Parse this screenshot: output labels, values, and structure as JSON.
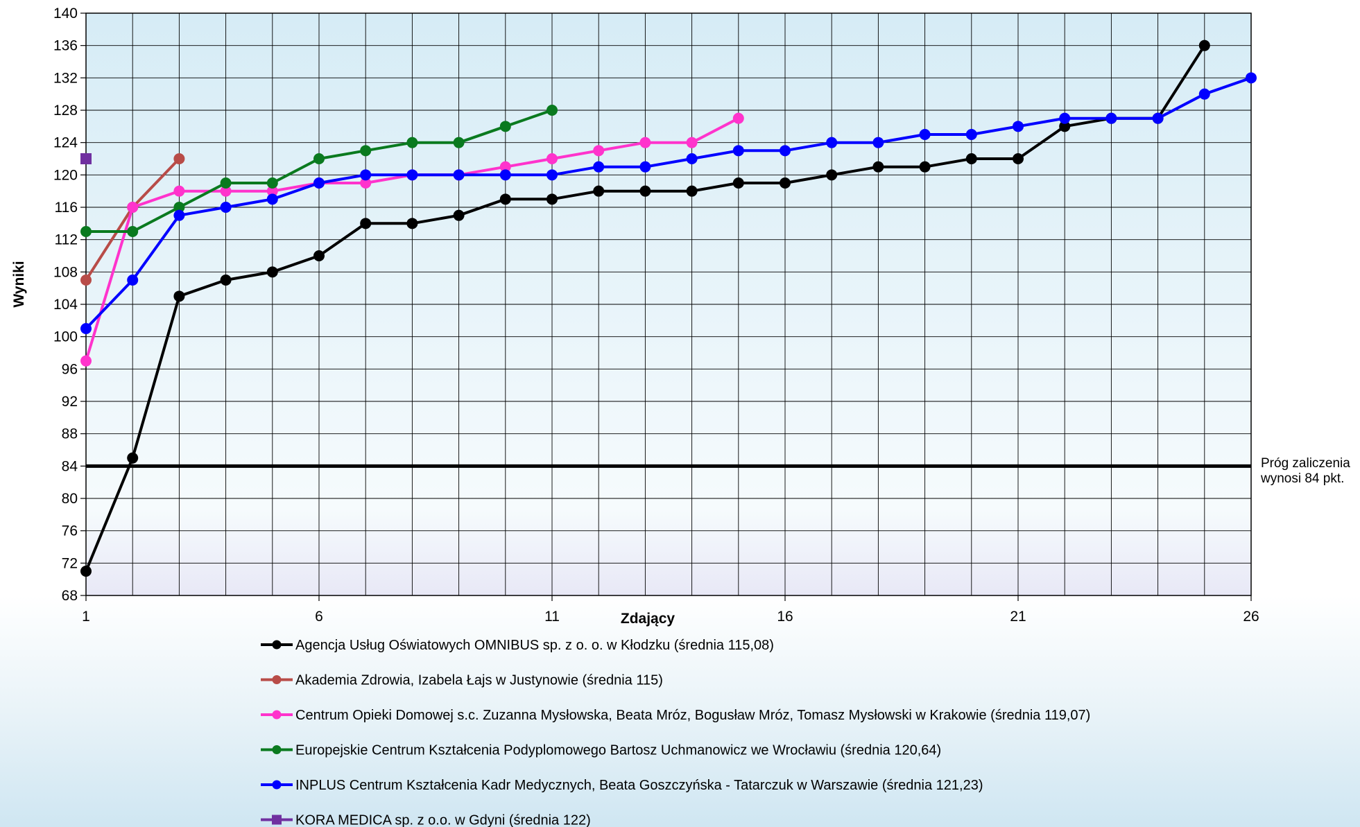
{
  "chart_data": {
    "type": "line",
    "xlabel": "Zdający",
    "ylabel": "Wyniki",
    "xlim": [
      1,
      26
    ],
    "ylim": [
      68,
      140
    ],
    "x_ticks": [
      "1",
      "6",
      "11",
      "16",
      "21",
      "26"
    ],
    "y_ticks": [
      "68",
      "72",
      "76",
      "80",
      "84",
      "88",
      "92",
      "96",
      "100",
      "104",
      "108",
      "112",
      "116",
      "120",
      "124",
      "128",
      "132",
      "136",
      "140"
    ],
    "grid": true,
    "legend_position": "bottom",
    "threshold": {
      "value": 84,
      "label_line1": "Próg zaliczenia",
      "label_line2": "wynosi 84 pkt.",
      "color": "#000000"
    },
    "series": [
      {
        "name": "Agencja Usług Oświatowych OMNIBUS sp. z o. o. w Kłodzku (średnia 115,08)",
        "color": "#000000",
        "marker": "circle",
        "values": [
          71,
          85,
          105,
          107,
          108,
          110,
          114,
          114,
          115,
          117,
          117,
          118,
          118,
          118,
          119,
          119,
          120,
          121,
          121,
          122,
          122,
          126,
          127,
          127,
          136
        ]
      },
      {
        "name": "Akademia Zdrowia, Izabela Łajs w Justynowie  (średnia 115)",
        "color": "#b84c48",
        "marker": "circle",
        "values": [
          107,
          116,
          122
        ]
      },
      {
        "name": "Centrum Opieki Domowej s.c. Zuzanna Mysłowska, Beata Mróz, Bogusław Mróz, Tomasz Mysłowski w Krakowie  (średnia 119,07)",
        "color": "#ff33cc",
        "marker": "circle",
        "values": [
          97,
          116,
          118,
          118,
          118,
          119,
          119,
          120,
          120,
          121,
          122,
          123,
          124,
          124,
          127
        ]
      },
      {
        "name": "Europejskie Centrum Kształcenia Podyplomowego Bartosz Uchmanowicz we Wrocławiu  (średnia 120,64)",
        "color": "#0a7a1f",
        "marker": "circle",
        "values": [
          113,
          113,
          116,
          119,
          119,
          122,
          123,
          124,
          124,
          126,
          128
        ]
      },
      {
        "name": "INPLUS Centrum Kształcenia Kadr Medycznych, Beata Goszczyńska - Tatarczuk w Warszawie  (średnia 121,23)",
        "color": "#0000ff",
        "marker": "circle",
        "values": [
          101,
          107,
          115,
          116,
          117,
          119,
          120,
          120,
          120,
          120,
          120,
          121,
          121,
          122,
          123,
          123,
          124,
          124,
          125,
          125,
          126,
          127,
          127,
          127,
          130,
          132
        ]
      },
      {
        "name": "KORA MEDICA sp. z o.o. w Gdyni  (średnia 122)",
        "color": "#7030a0",
        "marker": "square",
        "values": [
          122
        ]
      }
    ]
  }
}
